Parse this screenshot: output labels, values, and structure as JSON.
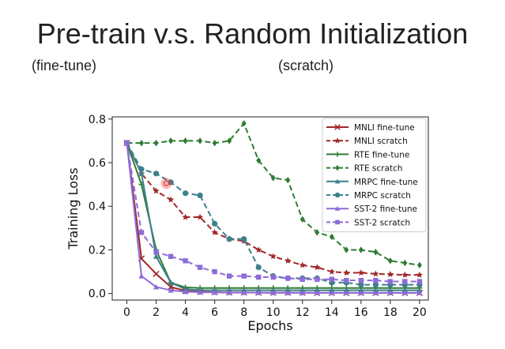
{
  "slide": {
    "title": "Pre-train v.s. Random Initialization",
    "subtitle_left": "(fine-tune)",
    "subtitle_right": "(scratch)"
  },
  "chart_data": {
    "type": "line",
    "xlabel": "Epochs",
    "ylabel": "Training Loss",
    "xlim": [
      -1,
      20.6
    ],
    "ylim": [
      -0.03,
      0.81
    ],
    "xticks": [
      0,
      2,
      4,
      6,
      8,
      10,
      12,
      14,
      16,
      18,
      20
    ],
    "yticks": [
      0.0,
      0.2,
      0.4,
      0.6,
      0.8
    ],
    "ytick_labels": [
      "0.0",
      "0.2",
      "0.4",
      "0.6",
      "0.8"
    ],
    "grid": false,
    "legend_position": "top-right",
    "x": [
      0,
      1,
      2,
      3,
      4,
      5,
      6,
      7,
      8,
      9,
      10,
      11,
      12,
      13,
      14,
      15,
      16,
      17,
      18,
      19,
      20
    ],
    "series": [
      {
        "name": "MNLI fine-tune",
        "color": "#a02828",
        "dash": "solid",
        "marker": "x",
        "values": [
          0.69,
          0.16,
          0.09,
          0.03,
          0.012,
          0.008,
          0.006,
          0.005,
          0.005,
          0.004,
          0.004,
          0.004,
          0.004,
          0.003,
          0.003,
          0.003,
          0.003,
          0.003,
          0.003,
          0.003,
          0.003
        ]
      },
      {
        "name": "MNLI scratch",
        "color": "#a02828",
        "dash": "dashed",
        "marker": "star",
        "values": [
          0.69,
          0.55,
          0.47,
          0.43,
          0.35,
          0.35,
          0.28,
          0.25,
          0.24,
          0.2,
          0.17,
          0.15,
          0.13,
          0.12,
          0.1,
          0.095,
          0.095,
          0.09,
          0.088,
          0.085,
          0.085
        ]
      },
      {
        "name": "RTE fine-tune",
        "color": "#2e7d32",
        "dash": "solid",
        "marker": "plus",
        "values": [
          0.69,
          0.5,
          0.2,
          0.05,
          0.028,
          0.025,
          0.025,
          0.025,
          0.025,
          0.025,
          0.025,
          0.025,
          0.025,
          0.025,
          0.025,
          0.025,
          0.025,
          0.025,
          0.025,
          0.025,
          0.025
        ]
      },
      {
        "name": "RTE scratch",
        "color": "#2e7d32",
        "dash": "dashed",
        "marker": "diamond",
        "values": [
          0.69,
          0.69,
          0.69,
          0.7,
          0.7,
          0.7,
          0.69,
          0.7,
          0.78,
          0.61,
          0.53,
          0.52,
          0.34,
          0.28,
          0.26,
          0.2,
          0.2,
          0.19,
          0.15,
          0.14,
          0.13
        ]
      },
      {
        "name": "MRPC fine-tune",
        "color": "#3d7f8c",
        "dash": "solid",
        "marker": "tri",
        "values": [
          0.69,
          0.55,
          0.17,
          0.05,
          0.02,
          0.015,
          0.015,
          0.015,
          0.015,
          0.015,
          0.015,
          0.015,
          0.015,
          0.015,
          0.015,
          0.015,
          0.015,
          0.015,
          0.015,
          0.015,
          0.015
        ]
      },
      {
        "name": "MRPC scratch",
        "color": "#3d7f8c",
        "dash": "dashed",
        "marker": "circle",
        "values": [
          0.69,
          0.57,
          0.55,
          0.51,
          0.46,
          0.45,
          0.32,
          0.25,
          0.25,
          0.12,
          0.08,
          0.07,
          0.07,
          0.07,
          0.05,
          0.05,
          0.04,
          0.04,
          0.04,
          0.04,
          0.04
        ]
      },
      {
        "name": "SST-2 fine-tune",
        "color": "#8c6cd8",
        "dash": "solid",
        "marker": "tri",
        "values": [
          0.69,
          0.08,
          0.03,
          0.015,
          0.008,
          0.006,
          0.005,
          0.004,
          0.004,
          0.004,
          0.003,
          0.003,
          0.003,
          0.003,
          0.003,
          0.003,
          0.003,
          0.003,
          0.003,
          0.003,
          0.003
        ]
      },
      {
        "name": "SST-2 scratch",
        "color": "#8c6cd8",
        "dash": "dashed",
        "marker": "square",
        "values": [
          0.69,
          0.28,
          0.19,
          0.17,
          0.15,
          0.12,
          0.1,
          0.08,
          0.08,
          0.075,
          0.075,
          0.07,
          0.065,
          0.065,
          0.065,
          0.06,
          0.06,
          0.06,
          0.055,
          0.055,
          0.055
        ]
      }
    ]
  },
  "pointer": {
    "x": 2.7,
    "y": 0.505,
    "color": "#e53935"
  }
}
